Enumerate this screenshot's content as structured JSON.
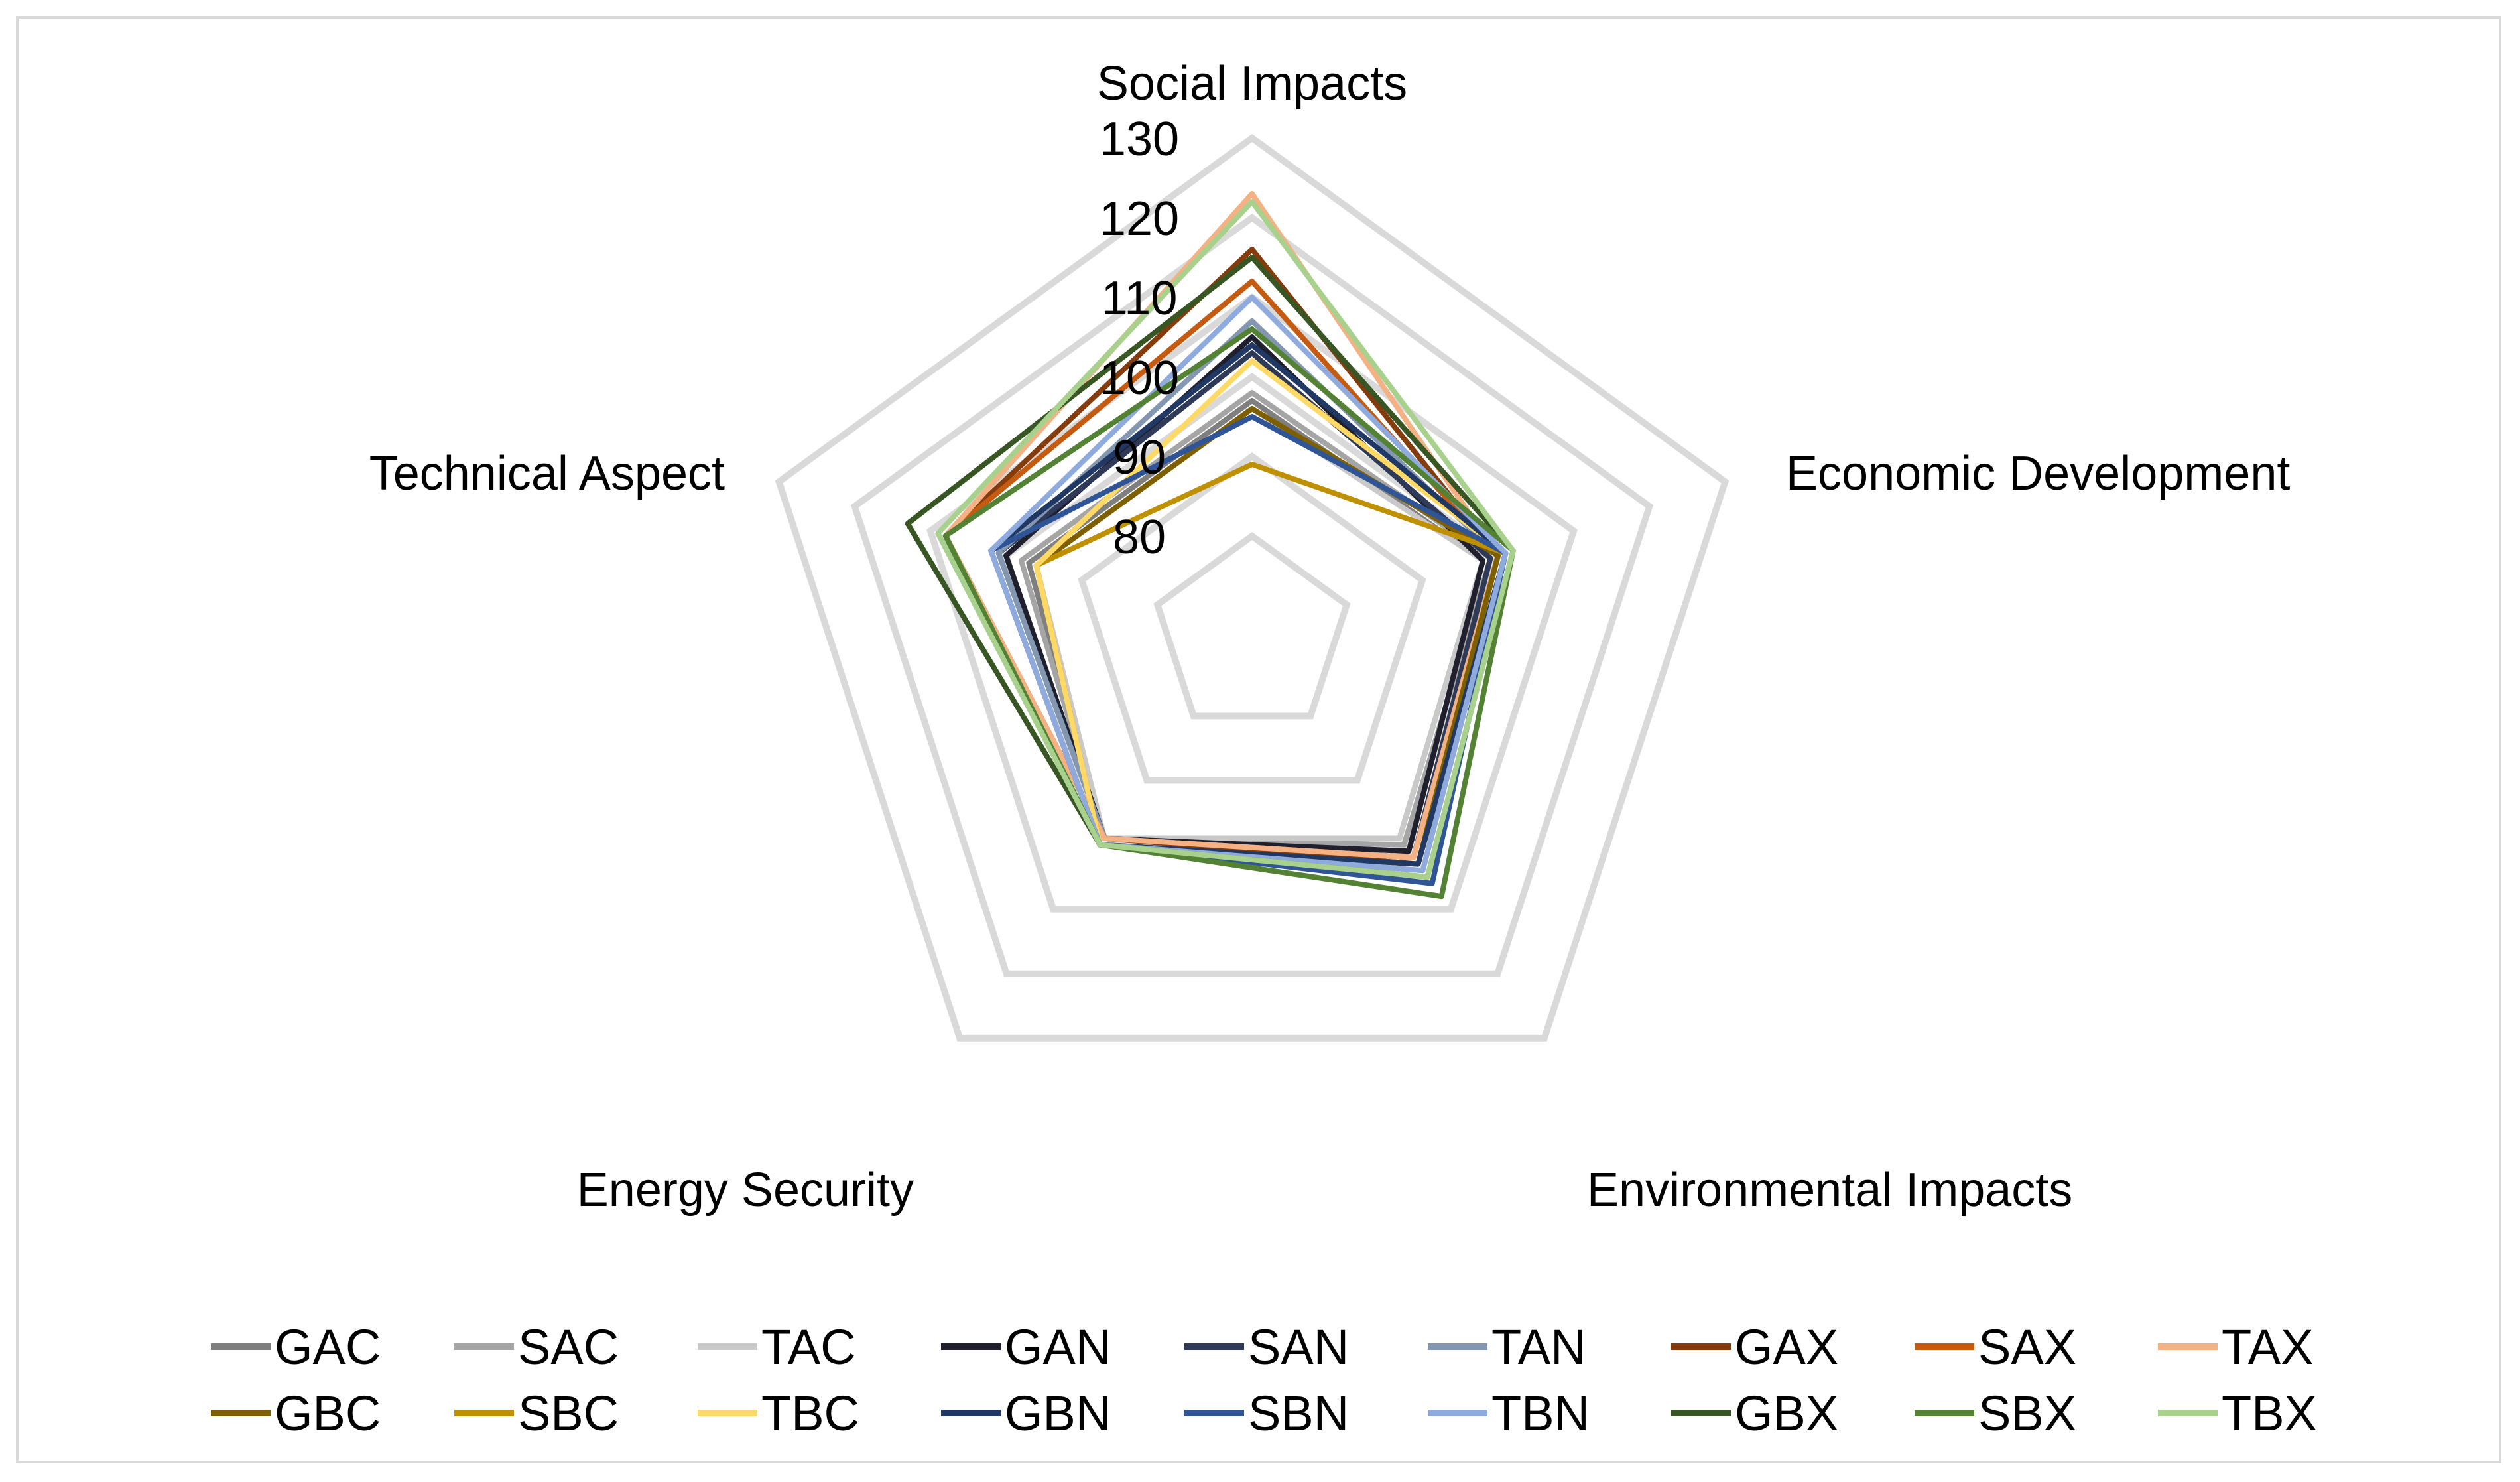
{
  "chart_data": {
    "type": "radar",
    "title": "",
    "axes": [
      "Social Impacts",
      "Economic Development",
      "Environmental Impacts",
      "Energy Security",
      "Technical Aspect"
    ],
    "rlim": [
      80,
      130
    ],
    "ticks": [
      80,
      90,
      100,
      110,
      120,
      130
    ],
    "tick_labels": [
      "80",
      "90",
      "100",
      "110",
      "120",
      "130"
    ],
    "grid": true,
    "legend_position": "bottom",
    "series": [
      {
        "name": "GAC",
        "color": "#7f7f7f",
        "values": [
          97,
          98,
          99,
          99,
          97
        ]
      },
      {
        "name": "SAC",
        "color": "#a5a5a5",
        "values": [
          98,
          99,
          100,
          99,
          98
        ]
      },
      {
        "name": "TAC",
        "color": "#c9c9c9",
        "values": [
          96,
          98,
          99,
          99,
          96
        ]
      },
      {
        "name": "GAN",
        "color": "#1f1f2e",
        "values": [
          105,
          98,
          101,
          99,
          100
        ]
      },
      {
        "name": "SAN",
        "color": "#2e3a57",
        "values": [
          103,
          99,
          102,
          99,
          101
        ]
      },
      {
        "name": "TAN",
        "color": "#8497b0",
        "values": [
          107,
          100,
          102,
          99,
          101
        ]
      },
      {
        "name": "GAX",
        "color": "#843c0c",
        "values": [
          116,
          100,
          103,
          99,
          108
        ]
      },
      {
        "name": "SAX",
        "color": "#c55a11",
        "values": [
          112,
          100,
          102,
          99,
          108
        ]
      },
      {
        "name": "TAX",
        "color": "#f4b183",
        "values": [
          123,
          100,
          102,
          99,
          108
        ]
      },
      {
        "name": "GBC",
        "color": "#7f6000",
        "values": [
          96,
          100,
          103,
          100,
          96
        ]
      },
      {
        "name": "SBC",
        "color": "#bf9000",
        "values": [
          89,
          101,
          104,
          100,
          96
        ]
      },
      {
        "name": "TBC",
        "color": "#ffd966",
        "values": [
          102,
          101,
          104,
          100,
          96
        ]
      },
      {
        "name": "GBN",
        "color": "#203864",
        "values": [
          104,
          101,
          103,
          100,
          102
        ]
      },
      {
        "name": "SBN",
        "color": "#2f5597",
        "values": [
          95,
          101,
          106,
          100,
          102
        ]
      },
      {
        "name": "TBN",
        "color": "#8faadc",
        "values": [
          110,
          101,
          104,
          100,
          102
        ]
      },
      {
        "name": "GBX",
        "color": "#375623",
        "values": [
          115,
          102,
          105,
          100,
          113
        ]
      },
      {
        "name": "SBX",
        "color": "#548235",
        "values": [
          106,
          102,
          108,
          100,
          108
        ]
      },
      {
        "name": "TBX",
        "color": "#a9d18e",
        "values": [
          122,
          102,
          105,
          100,
          109
        ]
      }
    ]
  }
}
